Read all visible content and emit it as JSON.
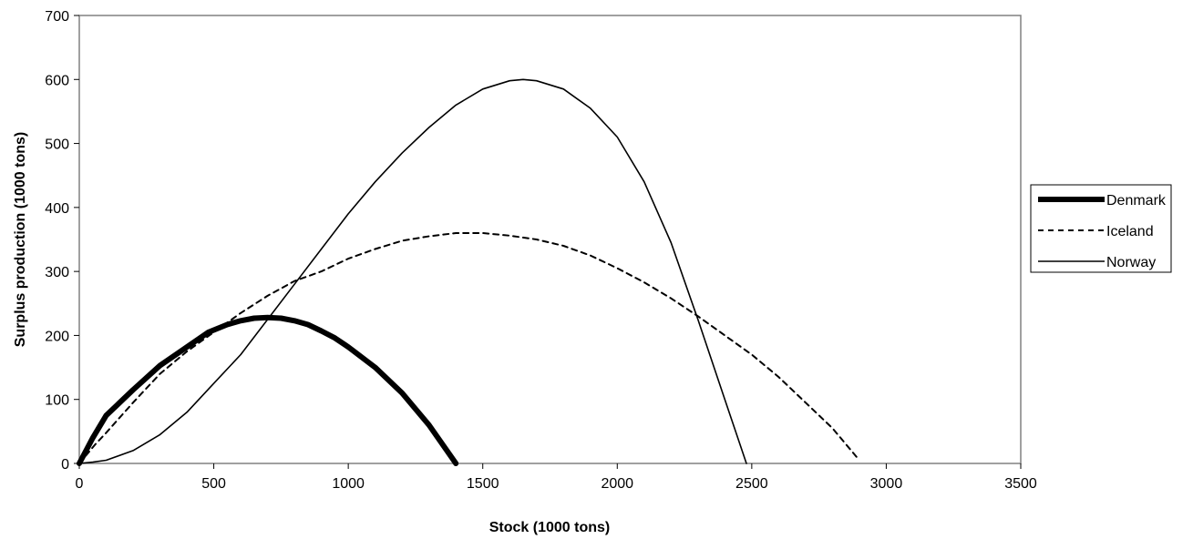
{
  "chart_data": {
    "type": "line",
    "title": "",
    "xlabel": "Stock (1000 tons)",
    "ylabel": "Surplus production (1000 tons)",
    "xlim": [
      0,
      3500
    ],
    "ylim": [
      0,
      700
    ],
    "x_ticks": [
      0,
      500,
      1000,
      1500,
      2000,
      2500,
      3000,
      3500
    ],
    "y_ticks": [
      0,
      100,
      200,
      300,
      400,
      500,
      600,
      700
    ],
    "grid": false,
    "legend_position": "right",
    "series": [
      {
        "name": "Denmark",
        "style": "thick-solid",
        "color": "#000000",
        "points": [
          [
            0,
            0
          ],
          [
            50,
            40
          ],
          [
            100,
            75
          ],
          [
            200,
            115
          ],
          [
            300,
            153
          ],
          [
            400,
            182
          ],
          [
            480,
            205
          ],
          [
            550,
            217
          ],
          [
            600,
            223
          ],
          [
            650,
            227
          ],
          [
            700,
            228
          ],
          [
            750,
            227
          ],
          [
            800,
            223
          ],
          [
            850,
            217
          ],
          [
            900,
            207
          ],
          [
            950,
            196
          ],
          [
            1000,
            182
          ],
          [
            1100,
            150
          ],
          [
            1200,
            110
          ],
          [
            1300,
            60
          ],
          [
            1400,
            0
          ]
        ]
      },
      {
        "name": "Iceland",
        "style": "dashed",
        "color": "#000000",
        "points": [
          [
            0,
            0
          ],
          [
            60,
            30
          ],
          [
            100,
            48
          ],
          [
            200,
            95
          ],
          [
            300,
            140
          ],
          [
            400,
            175
          ],
          [
            500,
            205
          ],
          [
            600,
            235
          ],
          [
            700,
            262
          ],
          [
            800,
            285
          ],
          [
            900,
            300
          ],
          [
            1000,
            320
          ],
          [
            1100,
            335
          ],
          [
            1200,
            348
          ],
          [
            1300,
            355
          ],
          [
            1400,
            360
          ],
          [
            1500,
            360
          ],
          [
            1600,
            356
          ],
          [
            1700,
            350
          ],
          [
            1800,
            340
          ],
          [
            1900,
            325
          ],
          [
            2000,
            305
          ],
          [
            2100,
            283
          ],
          [
            2200,
            258
          ],
          [
            2300,
            230
          ],
          [
            2400,
            200
          ],
          [
            2500,
            170
          ],
          [
            2600,
            135
          ],
          [
            2700,
            95
          ],
          [
            2800,
            55
          ],
          [
            2900,
            5
          ]
        ]
      },
      {
        "name": "Norway",
        "style": "thin-solid",
        "color": "#000000",
        "points": [
          [
            0,
            0
          ],
          [
            50,
            2
          ],
          [
            100,
            5
          ],
          [
            200,
            20
          ],
          [
            300,
            45
          ],
          [
            400,
            80
          ],
          [
            500,
            125
          ],
          [
            600,
            170
          ],
          [
            700,
            225
          ],
          [
            800,
            280
          ],
          [
            900,
            335
          ],
          [
            1000,
            390
          ],
          [
            1100,
            440
          ],
          [
            1200,
            485
          ],
          [
            1300,
            525
          ],
          [
            1400,
            560
          ],
          [
            1500,
            585
          ],
          [
            1600,
            598
          ],
          [
            1650,
            600
          ],
          [
            1700,
            598
          ],
          [
            1800,
            585
          ],
          [
            1900,
            555
          ],
          [
            2000,
            510
          ],
          [
            2100,
            440
          ],
          [
            2200,
            345
          ],
          [
            2300,
            225
          ],
          [
            2400,
            100
          ],
          [
            2480,
            0
          ]
        ]
      }
    ]
  }
}
